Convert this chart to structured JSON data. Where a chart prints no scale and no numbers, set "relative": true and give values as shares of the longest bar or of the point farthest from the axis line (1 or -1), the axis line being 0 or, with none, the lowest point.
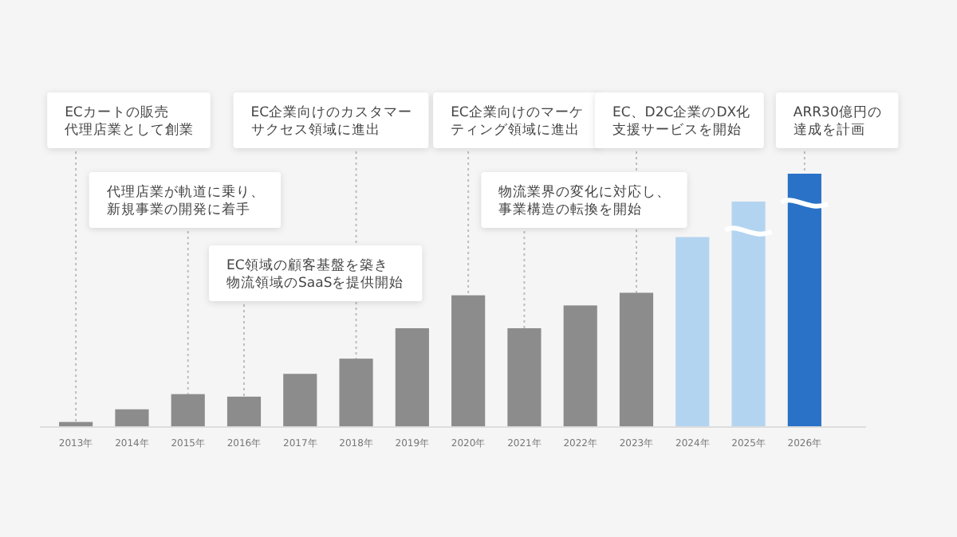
{
  "chart_data": {
    "type": "bar",
    "relative": true,
    "categories": [
      "2013年",
      "2014年",
      "2015年",
      "2016年",
      "2017年",
      "2018年",
      "2019年",
      "2020年",
      "2021年",
      "2022年",
      "2023年",
      "2024年",
      "2025年",
      "2026年"
    ],
    "values": [
      0.02,
      0.07,
      0.13,
      0.12,
      0.21,
      0.27,
      0.39,
      0.52,
      0.39,
      0.48,
      0.53,
      0.75,
      0.89,
      1
    ],
    "colors": [
      "#8c8c8c",
      "#8c8c8c",
      "#8c8c8c",
      "#8c8c8c",
      "#8c8c8c",
      "#8c8c8c",
      "#8c8c8c",
      "#8c8c8c",
      "#8c8c8c",
      "#8c8c8c",
      "#8c8c8c",
      "#b3d4f0",
      "#b3d4f0",
      "#2a72c8"
    ],
    "annotations": [
      "ECカートの販売代理店業として創業",
      {
        "text": "代理店業が軌道に乗り、新規事業の開発に着手",
        "x": "2015年",
        "y": 0.13
      },
      {
        "text": "EC領域の顧客基盤を築き物流領域のSaaSを提供開始",
        "x": "2016年",
        "y": 0.12
      },
      "EC企業向けのカスタマーサクセス領域に進出",
      {
        "text": "EC企業向けのマーケティング領域に進出",
        "x": "2020年",
        "y": 0.52
      },
      {
        "text": "物流業界の変化に対応し、事業構造の転換を開始",
        "x": "2021年",
        "y": 0.39
      },
      {
        "text": "EC、D2C企業のDX化支援サービスを開始",
        "x": "2023年",
        "y": 0.53
      },
      {
        "text": "ARR30億円の達成を計画",
        "x": "2026年",
        "y": 1
      }
    ]
  }
}
